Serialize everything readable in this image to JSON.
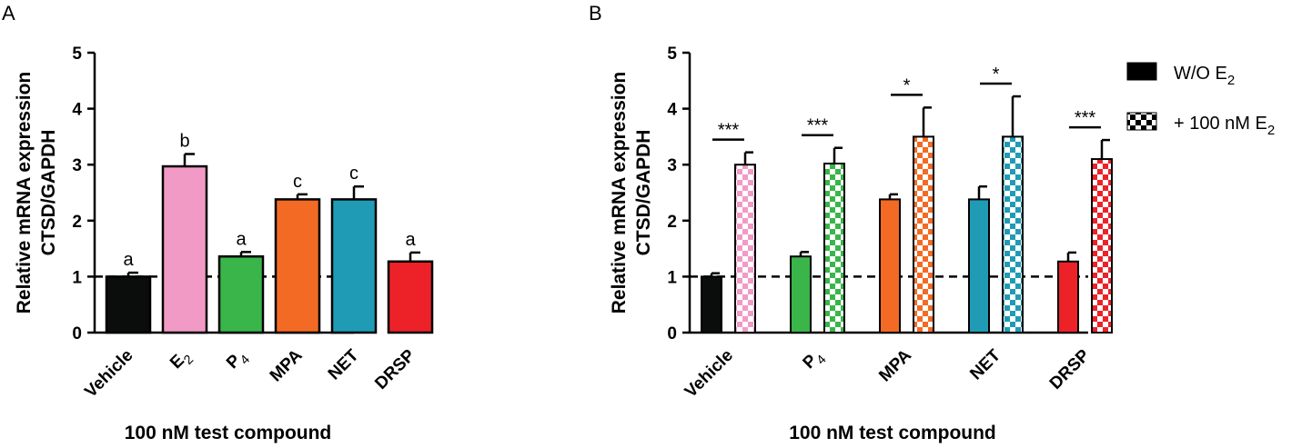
{
  "chart_data": [
    {
      "panel": "A",
      "type": "bar",
      "ylabel": [
        "Relative mRNA expression",
        "CTSD/GAPDH"
      ],
      "xlabel": "100 nM test compound",
      "ylim": [
        0,
        5
      ],
      "yticks": [
        0,
        1,
        2,
        3,
        4,
        5
      ],
      "reference_line": 1,
      "categories": [
        {
          "label": "Vehicle",
          "sub": ""
        },
        {
          "label": "E",
          "sub": "2"
        },
        {
          "label": "P",
          "sub": "4"
        },
        {
          "label": "MPA",
          "sub": ""
        },
        {
          "label": "NET",
          "sub": ""
        },
        {
          "label": "DRSP",
          "sub": ""
        }
      ],
      "values": [
        1.0,
        2.97,
        1.36,
        2.38,
        2.38,
        1.27
      ],
      "errors": [
        0.07,
        0.22,
        0.08,
        0.09,
        0.23,
        0.16
      ],
      "significance_letters": [
        "a",
        "b",
        "a",
        "c",
        "c",
        "a"
      ],
      "colors": [
        "#0a0d0c",
        "#f29ac6",
        "#3ab54a",
        "#f26a24",
        "#209bb5",
        "#ec2228"
      ]
    },
    {
      "panel": "B",
      "type": "bar",
      "ylabel": [
        "Relative mRNA expression",
        "CTSD/GAPDH"
      ],
      "xlabel": "100 nM test compound",
      "ylim": [
        0,
        5
      ],
      "yticks": [
        0,
        1,
        2,
        3,
        4,
        5
      ],
      "reference_line": 1,
      "categories": [
        {
          "label": "Vehicle",
          "sub": ""
        },
        {
          "label": "P",
          "sub": "4"
        },
        {
          "label": "MPA",
          "sub": ""
        },
        {
          "label": "NET",
          "sub": ""
        },
        {
          "label": "DRSP",
          "sub": ""
        }
      ],
      "colors": [
        "#0a0d0c",
        "#3ab54a",
        "#f26a24",
        "#209bb5",
        "#ec2228"
      ],
      "checker_colors": [
        "#f29ac6",
        "#3ab54a",
        "#f26a24",
        "#209bb5",
        "#ec2228"
      ],
      "series": [
        {
          "name": "W/O E2",
          "values": [
            1.0,
            1.36,
            2.38,
            2.38,
            1.27
          ],
          "errors": [
            0.06,
            0.08,
            0.09,
            0.23,
            0.16
          ]
        },
        {
          "name": "+ 100 nM E2",
          "values": [
            3.0,
            3.02,
            3.5,
            3.5,
            3.1
          ],
          "errors": [
            0.22,
            0.28,
            0.52,
            0.72,
            0.34
          ]
        }
      ],
      "significance_stars": [
        "***",
        "***",
        "*",
        "*",
        "***"
      ],
      "legend": [
        {
          "label": "W/O E",
          "sub": "2",
          "pattern": "solid",
          "color": "#000000"
        },
        {
          "label": "+ 100 nM E",
          "sub": "2",
          "pattern": "checker",
          "color": "#000000"
        }
      ]
    }
  ],
  "panels": {
    "a_letter": "A",
    "b_letter": "B"
  }
}
